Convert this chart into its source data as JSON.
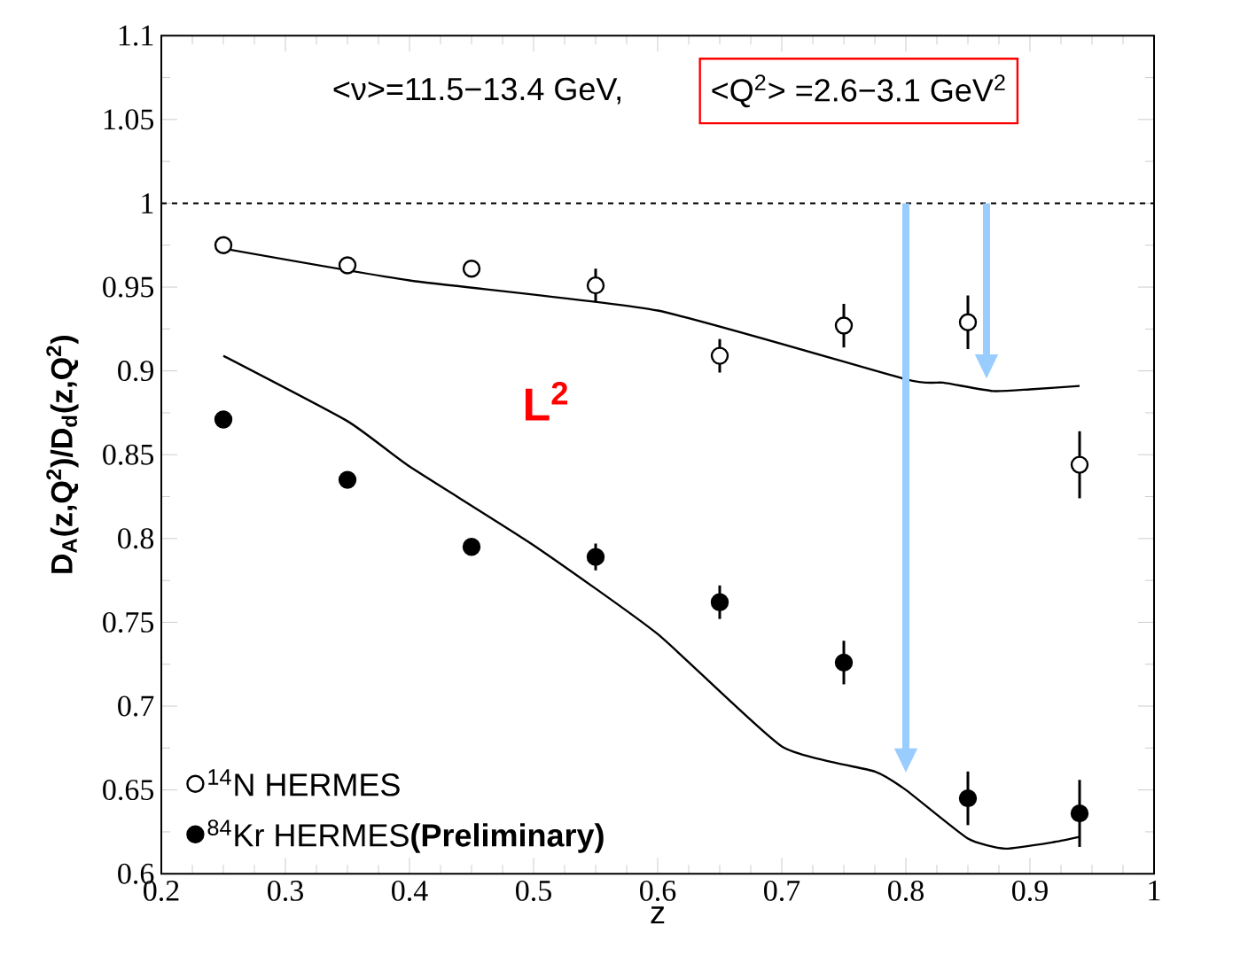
{
  "chart_data": {
    "type": "scatter",
    "xlabel": "z",
    "ylabel": "D$_{A}$(z,Q$^{2}$)/D$_{d}$(z,Q$^{2}$)",
    "annotations": [
      "<ν>=11.5−13.4 GeV,",
      "<Q$^{2}$> =2.6−3.1 GeV$^{2}$",
      "L$^{2}$"
    ],
    "xlim": [
      0.2,
      1
    ],
    "ylim": [
      0.6,
      1.1
    ],
    "xticks": [
      0.2,
      0.3,
      0.4,
      0.5,
      0.6,
      0.7,
      0.8,
      0.9,
      1
    ],
    "yticks": [
      0.6,
      0.65,
      0.7,
      0.75,
      0.8,
      0.85,
      0.9,
      0.95,
      1,
      1.05,
      1.1
    ],
    "legend": "bottom left",
    "ref_lines": [
      {
        "axis": "y",
        "value": 1,
        "line_style": "dashed",
        "color": "#000000"
      }
    ],
    "series": [
      {
        "name": "$^{14}$N HERMES",
        "marker": "circle",
        "color": "#000000",
        "x": [
          0.25,
          0.35,
          0.45,
          0.55,
          0.65,
          0.75,
          0.85,
          0.94
        ],
        "values": [
          0.975,
          0.963,
          0.961,
          0.951,
          0.909,
          0.927,
          0.929,
          0.844
        ],
        "errors": [
          null,
          null,
          null,
          0.01,
          0.01,
          0.013,
          0.016,
          0.02
        ]
      },
      {
        "name": "$^{84}$Kr HERMES**(Preliminary)**",
        "marker": "circle",
        "color": "#000000",
        "x": [
          0.25,
          0.35,
          0.45,
          0.55,
          0.65,
          0.75,
          0.85,
          0.94
        ],
        "values": [
          0.871,
          0.835,
          0.795,
          0.789,
          0.762,
          0.726,
          0.645,
          0.636
        ],
        "errors": [
          null,
          null,
          null,
          0.008,
          0.01,
          0.013,
          0.016,
          0.02
        ]
      },
      {
        "type": "line",
        "color": "#000000",
        "x": [
          0.25,
          0.4,
          0.6,
          0.8,
          0.83,
          0.87,
          0.9,
          0.94
        ],
        "values": [
          0.973,
          0.954,
          0.936,
          0.895,
          0.893,
          0.888,
          0.889,
          0.891
        ]
      },
      {
        "type": "line",
        "color": "#000000",
        "x": [
          0.25,
          0.35,
          0.4,
          0.5,
          0.6,
          0.7,
          0.775,
          0.8,
          0.85,
          0.88,
          0.92,
          0.94
        ],
        "values": [
          0.909,
          0.87,
          0.843,
          0.796,
          0.743,
          0.676,
          0.661,
          0.65,
          0.621,
          0.615,
          0.619,
          0.622
        ]
      }
    ]
  }
}
